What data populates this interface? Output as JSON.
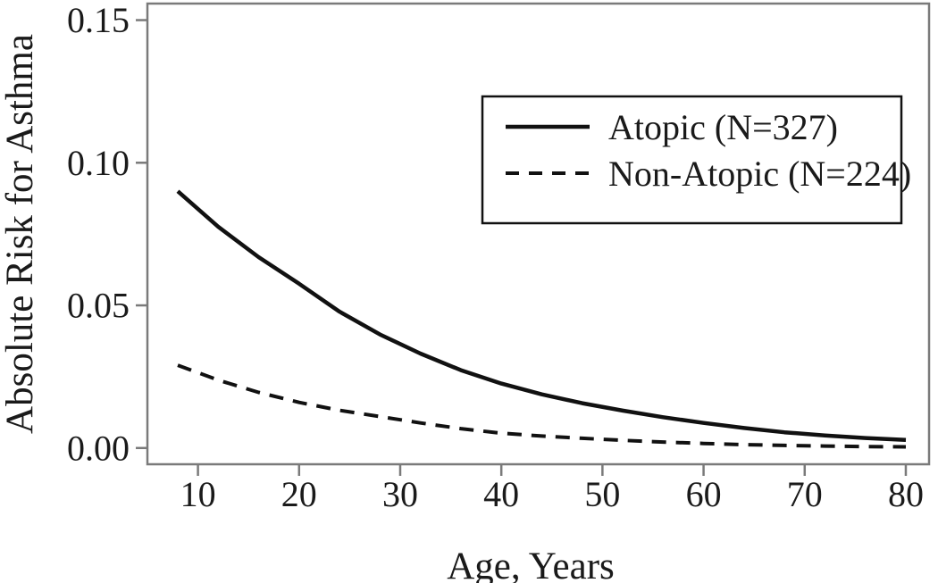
{
  "figure": {
    "background": "#ffffff",
    "axis_color": "#7a7a7a",
    "curve_color": "#111111",
    "text_color": "#1a1a1a"
  },
  "chart_data": {
    "type": "line",
    "title": "",
    "xlabel": "Age, Years",
    "ylabel": "Absolute Risk for Asthma",
    "xlim": [
      5,
      82.3
    ],
    "ylim": [
      -0.0057,
      0.1558
    ],
    "grid": false,
    "xticks": {
      "values": [
        10,
        20,
        30,
        40,
        50,
        60,
        70,
        80
      ],
      "labels": [
        "10",
        "20",
        "30",
        "40",
        "50",
        "60",
        "70",
        "80"
      ]
    },
    "yticks": {
      "values": [
        0.0,
        0.05,
        0.1,
        0.15
      ],
      "labels": [
        "0.00",
        "0.05",
        "0.10",
        "0.15"
      ]
    },
    "x": [
      8,
      12,
      16,
      20,
      24,
      28,
      32,
      36,
      40,
      44,
      48,
      52,
      56,
      60,
      64,
      68,
      72,
      76,
      80
    ],
    "series": [
      {
        "name": "Atopic (N=327)",
        "style": "solid",
        "values": [
          0.09,
          0.0776,
          0.0669,
          0.0576,
          0.0478,
          0.0398,
          0.0331,
          0.0273,
          0.0226,
          0.0188,
          0.0157,
          0.0131,
          0.0108,
          0.0088,
          0.007,
          0.0055,
          0.0044,
          0.0035,
          0.0028
        ]
      },
      {
        "name": "Non-Atopic (N=224)",
        "style": "dashed",
        "values": [
          0.029,
          0.0238,
          0.0195,
          0.016,
          0.0132,
          0.011,
          0.0088,
          0.0068,
          0.0052,
          0.0042,
          0.0034,
          0.0027,
          0.0021,
          0.0016,
          0.0012,
          0.0009,
          0.0007,
          0.0005,
          0.0004
        ]
      }
    ],
    "legend": {
      "position": "upper-right",
      "border": true
    }
  }
}
